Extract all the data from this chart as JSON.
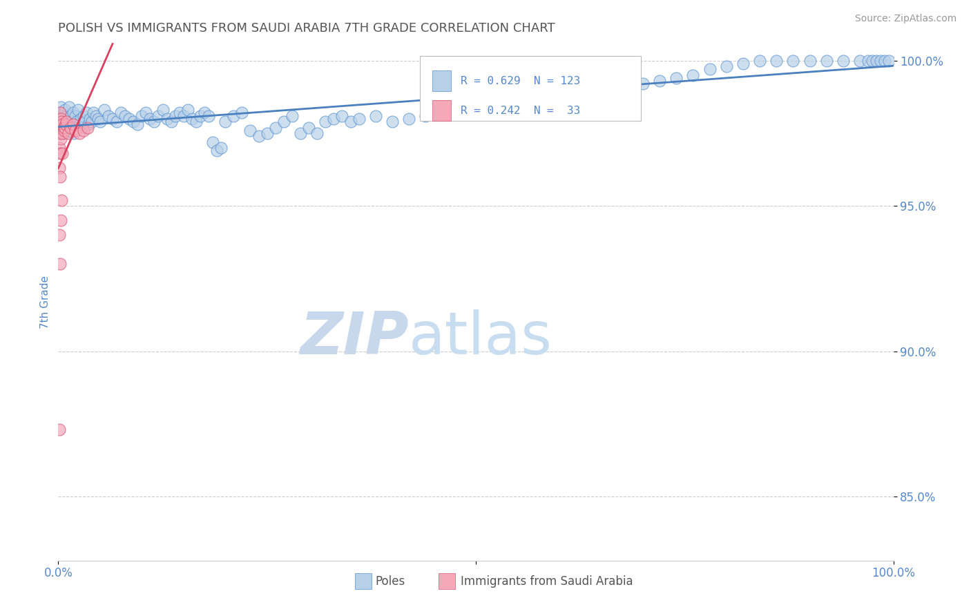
{
  "title": "POLISH VS IMMIGRANTS FROM SAUDI ARABIA 7TH GRADE CORRELATION CHART",
  "source": "Source: ZipAtlas.com",
  "ylabel": "7th Grade",
  "xmin": 0.0,
  "xmax": 1.0,
  "ymin": 0.828,
  "ymax": 1.006,
  "yticks": [
    0.85,
    0.9,
    0.95,
    1.0
  ],
  "ytick_labels": [
    "85.0%",
    "90.0%",
    "95.0%",
    "100.0%"
  ],
  "legend_r1": "R = 0.629",
  "legend_n1": "N = 123",
  "legend_r2": "R = 0.242",
  "legend_n2": "N =  33",
  "legend_label1": "Poles",
  "legend_label2": "Immigrants from Saudi Arabia",
  "blue_color": "#b8d0e8",
  "blue_edge_color": "#5590d0",
  "pink_color": "#f4a8b8",
  "pink_edge_color": "#d85070",
  "blue_line_color": "#4a80c0",
  "pink_line_color": "#d84060",
  "watermark_zip_color": "#c8d8ec",
  "watermark_atlas_color": "#c8ddf0",
  "title_color": "#555555",
  "axis_color": "#5588cc",
  "grid_color": "#cccccc",
  "blue_points_x": [
    0.001,
    0.002,
    0.002,
    0.003,
    0.003,
    0.004,
    0.004,
    0.005,
    0.005,
    0.006,
    0.006,
    0.007,
    0.007,
    0.008,
    0.008,
    0.009,
    0.009,
    0.01,
    0.011,
    0.012,
    0.013,
    0.014,
    0.015,
    0.016,
    0.018,
    0.019,
    0.02,
    0.022,
    0.024,
    0.025,
    0.027,
    0.028,
    0.03,
    0.032,
    0.034,
    0.036,
    0.038,
    0.04,
    0.042,
    0.045,
    0.048,
    0.05,
    0.055,
    0.06,
    0.065,
    0.07,
    0.075,
    0.08,
    0.085,
    0.09,
    0.095,
    0.1,
    0.105,
    0.11,
    0.115,
    0.12,
    0.125,
    0.13,
    0.135,
    0.14,
    0.145,
    0.15,
    0.155,
    0.16,
    0.165,
    0.17,
    0.175,
    0.18,
    0.185,
    0.19,
    0.195,
    0.2,
    0.21,
    0.22,
    0.23,
    0.24,
    0.25,
    0.26,
    0.27,
    0.28,
    0.29,
    0.3,
    0.31,
    0.32,
    0.33,
    0.34,
    0.35,
    0.36,
    0.38,
    0.4,
    0.42,
    0.44,
    0.46,
    0.48,
    0.5,
    0.52,
    0.54,
    0.56,
    0.58,
    0.6,
    0.62,
    0.64,
    0.66,
    0.7,
    0.72,
    0.74,
    0.76,
    0.78,
    0.8,
    0.82,
    0.84,
    0.86,
    0.88,
    0.9,
    0.92,
    0.94,
    0.96,
    0.97,
    0.975,
    0.98,
    0.985,
    0.99,
    0.995
  ],
  "blue_points_y": [
    0.98,
    0.975,
    0.982,
    0.978,
    0.984,
    0.976,
    0.979,
    0.98,
    0.977,
    0.981,
    0.978,
    0.982,
    0.975,
    0.98,
    0.983,
    0.979,
    0.977,
    0.981,
    0.976,
    0.98,
    0.984,
    0.978,
    0.981,
    0.979,
    0.982,
    0.975,
    0.981,
    0.979,
    0.983,
    0.978,
    0.98,
    0.977,
    0.981,
    0.979,
    0.982,
    0.978,
    0.98,
    0.979,
    0.982,
    0.981,
    0.98,
    0.979,
    0.983,
    0.981,
    0.98,
    0.979,
    0.982,
    0.981,
    0.98,
    0.979,
    0.978,
    0.981,
    0.982,
    0.98,
    0.979,
    0.981,
    0.983,
    0.98,
    0.979,
    0.981,
    0.982,
    0.981,
    0.983,
    0.98,
    0.979,
    0.981,
    0.982,
    0.981,
    0.972,
    0.969,
    0.97,
    0.979,
    0.981,
    0.982,
    0.976,
    0.974,
    0.975,
    0.977,
    0.979,
    0.981,
    0.975,
    0.977,
    0.975,
    0.979,
    0.98,
    0.981,
    0.979,
    0.98,
    0.981,
    0.979,
    0.98,
    0.981,
    0.982,
    0.983,
    0.984,
    0.985,
    0.986,
    0.986,
    0.987,
    0.988,
    0.989,
    0.99,
    0.991,
    0.992,
    0.993,
    0.994,
    0.995,
    0.997,
    0.998,
    0.999,
    1.0,
    1.0,
    1.0,
    1.0,
    1.0,
    1.0,
    1.0,
    1.0,
    1.0,
    1.0,
    1.0,
    1.0,
    1.0
  ],
  "pink_points_x": [
    0.001,
    0.001,
    0.001,
    0.001,
    0.002,
    0.002,
    0.002,
    0.002,
    0.002,
    0.003,
    0.003,
    0.003,
    0.003,
    0.004,
    0.004,
    0.005,
    0.005,
    0.005,
    0.006,
    0.007,
    0.008,
    0.009,
    0.01,
    0.012,
    0.015,
    0.018,
    0.02,
    0.025,
    0.03,
    0.035,
    0.001,
    0.002,
    0.001
  ],
  "pink_points_y": [
    0.978,
    0.975,
    0.97,
    0.963,
    0.982,
    0.978,
    0.975,
    0.968,
    0.96,
    0.98,
    0.977,
    0.973,
    0.945,
    0.979,
    0.952,
    0.978,
    0.975,
    0.968,
    0.977,
    0.976,
    0.977,
    0.978,
    0.979,
    0.975,
    0.977,
    0.978,
    0.976,
    0.975,
    0.976,
    0.977,
    0.94,
    0.93,
    0.873
  ]
}
